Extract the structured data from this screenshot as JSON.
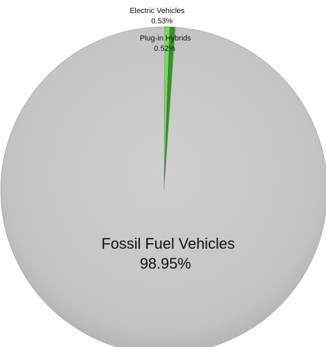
{
  "chart_data": {
    "type": "pie",
    "title": "",
    "slices": [
      {
        "label": "Fossil Fuel Vehicles",
        "value": 98.95,
        "value_label": "98.95%",
        "color": "#c8c8c8"
      },
      {
        "label": "Plug-in Hybrids",
        "value": 0.52,
        "value_label": "0.52%",
        "color": "#3c8f2e"
      },
      {
        "label": "Electric Vehicles",
        "value": 0.53,
        "value_label": "0.53%",
        "color": "#6fdc55"
      }
    ],
    "legend": "none",
    "start_angle_deg": 0,
    "direction": "counterclockwise-from-top"
  }
}
